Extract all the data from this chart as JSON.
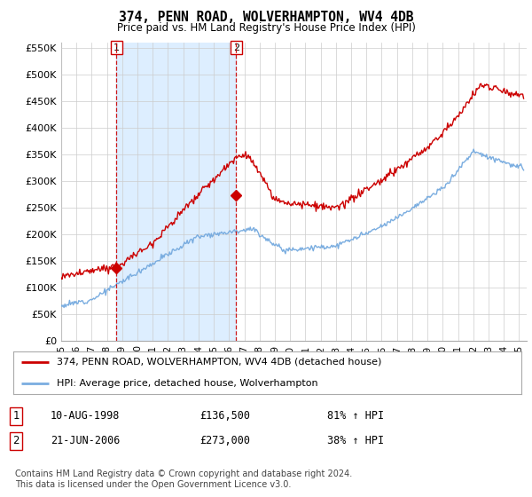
{
  "title": "374, PENN ROAD, WOLVERHAMPTON, WV4 4DB",
  "subtitle": "Price paid vs. HM Land Registry's House Price Index (HPI)",
  "ylabel_ticks": [
    "£0",
    "£50K",
    "£100K",
    "£150K",
    "£200K",
    "£250K",
    "£300K",
    "£350K",
    "£400K",
    "£450K",
    "£500K",
    "£550K"
  ],
  "ytick_values": [
    0,
    50000,
    100000,
    150000,
    200000,
    250000,
    300000,
    350000,
    400000,
    450000,
    500000,
    550000
  ],
  "xmin_year": 1995,
  "xmax_year": 2025.5,
  "xtick_years": [
    1995,
    1996,
    1997,
    1998,
    1999,
    2000,
    2001,
    2002,
    2003,
    2004,
    2005,
    2006,
    2007,
    2008,
    2009,
    2010,
    2011,
    2012,
    2013,
    2014,
    2015,
    2016,
    2017,
    2018,
    2019,
    2020,
    2021,
    2022,
    2023,
    2024,
    2025
  ],
  "xtick_labels": [
    "95",
    "96",
    "97",
    "98",
    "99",
    "00",
    "01",
    "02",
    "03",
    "04",
    "05",
    "06",
    "07",
    "08",
    "09",
    "10",
    "11",
    "12",
    "13",
    "14",
    "15",
    "16",
    "17",
    "18",
    "19",
    "20",
    "21",
    "22",
    "23",
    "24",
    "25"
  ],
  "sale1_year": 1998.62,
  "sale1_price": 136500,
  "sale2_year": 2006.47,
  "sale2_price": 273000,
  "legend_line1": "374, PENN ROAD, WOLVERHAMPTON, WV4 4DB (detached house)",
  "legend_line2": "HPI: Average price, detached house, Wolverhampton",
  "footer": "Contains HM Land Registry data © Crown copyright and database right 2024.\nThis data is licensed under the Open Government Licence v3.0.",
  "price_line_color": "#cc0000",
  "hpi_line_color": "#7aade0",
  "vline_color": "#cc0000",
  "shade_color": "#ddeeff",
  "background_color": "#ffffff",
  "grid_color": "#cccccc",
  "sale1_table_date": "10-AUG-1998",
  "sale1_table_price": "£136,500",
  "sale1_table_hpi": "81% ↑ HPI",
  "sale2_table_date": "21-JUN-2006",
  "sale2_table_price": "£273,000",
  "sale2_table_hpi": "38% ↑ HPI",
  "ylim_top": 560000
}
